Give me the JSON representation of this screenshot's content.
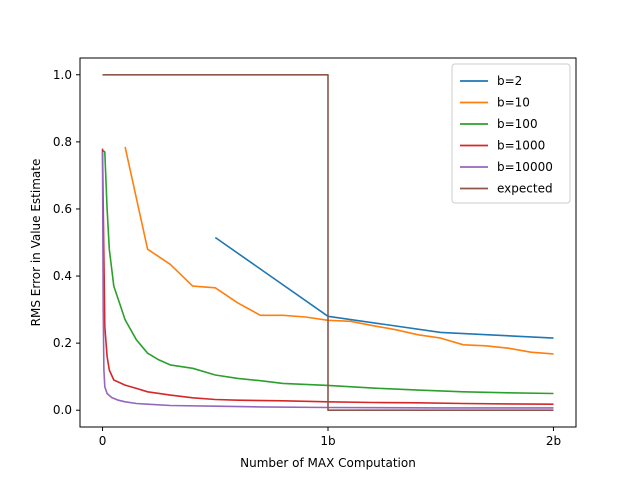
{
  "chart_data": {
    "type": "line",
    "title": "",
    "xlabel": "Number of MAX Computation",
    "ylabel": "RMS Error in Value Estimate",
    "xlim": [
      -0.1,
      2.1
    ],
    "ylim": [
      -0.05,
      1.05
    ],
    "x_ticks": [
      0,
      1,
      2
    ],
    "x_tick_labels": [
      "0",
      "1b",
      "2b"
    ],
    "y_ticks": [
      0.0,
      0.2,
      0.4,
      0.6,
      0.8,
      1.0
    ],
    "y_tick_labels": [
      "0.0",
      "0.2",
      "0.4",
      "0.6",
      "0.8",
      "1.0"
    ],
    "legend_position": "top-right",
    "grid": false,
    "series": [
      {
        "name": "b=2",
        "color": "#1f77b4",
        "x": [
          0.5,
          1.0,
          1.5,
          2.0
        ],
        "y": [
          0.515,
          0.28,
          0.232,
          0.215
        ]
      },
      {
        "name": "b=10",
        "color": "#ff7f0e",
        "x": [
          0.1,
          0.2,
          0.3,
          0.4,
          0.5,
          0.6,
          0.7,
          0.8,
          0.9,
          1.0,
          1.1,
          1.2,
          1.3,
          1.4,
          1.5,
          1.6,
          1.7,
          1.8,
          1.9,
          2.0
        ],
        "y": [
          0.785,
          0.48,
          0.435,
          0.37,
          0.365,
          0.32,
          0.283,
          0.283,
          0.278,
          0.268,
          0.265,
          0.252,
          0.24,
          0.225,
          0.215,
          0.195,
          0.192,
          0.185,
          0.173,
          0.168
        ]
      },
      {
        "name": "b=100",
        "color": "#2ca02c",
        "x": [
          0.0,
          0.01,
          0.02,
          0.03,
          0.05,
          0.08,
          0.1,
          0.15,
          0.2,
          0.25,
          0.3,
          0.4,
          0.5,
          0.6,
          0.7,
          0.8,
          0.9,
          1.0,
          1.2,
          1.4,
          1.6,
          1.8,
          2.0
        ],
        "y": [
          0.775,
          0.77,
          0.6,
          0.48,
          0.37,
          0.31,
          0.27,
          0.21,
          0.17,
          0.15,
          0.135,
          0.125,
          0.105,
          0.095,
          0.088,
          0.08,
          0.077,
          0.074,
          0.066,
          0.06,
          0.055,
          0.052,
          0.05
        ]
      },
      {
        "name": "b=1000",
        "color": "#d62728",
        "x": [
          0.0,
          0.005,
          0.01,
          0.02,
          0.03,
          0.05,
          0.1,
          0.15,
          0.2,
          0.3,
          0.4,
          0.5,
          0.6,
          0.8,
          1.0,
          1.2,
          1.4,
          1.6,
          1.8,
          2.0
        ],
        "y": [
          0.78,
          0.5,
          0.25,
          0.16,
          0.12,
          0.09,
          0.075,
          0.065,
          0.055,
          0.045,
          0.037,
          0.032,
          0.03,
          0.028,
          0.025,
          0.023,
          0.022,
          0.02,
          0.019,
          0.018
        ]
      },
      {
        "name": "b=10000",
        "color": "#9467bd",
        "x": [
          0.0,
          0.003,
          0.006,
          0.01,
          0.02,
          0.04,
          0.07,
          0.1,
          0.15,
          0.2,
          0.3,
          0.5,
          0.7,
          1.0,
          1.5,
          2.0
        ],
        "y": [
          0.77,
          0.3,
          0.12,
          0.07,
          0.05,
          0.038,
          0.03,
          0.025,
          0.02,
          0.018,
          0.014,
          0.012,
          0.01,
          0.008,
          0.007,
          0.007
        ]
      },
      {
        "name": "expected",
        "color": "#8c564b",
        "x": [
          0.0,
          1.0,
          1.0,
          2.0
        ],
        "y": [
          1.0,
          1.0,
          0.0,
          0.0
        ]
      }
    ]
  }
}
